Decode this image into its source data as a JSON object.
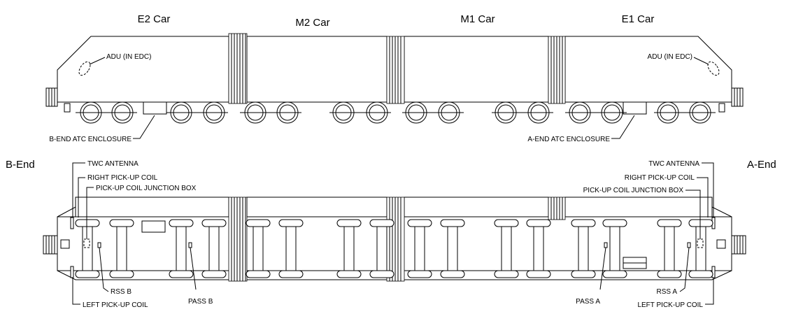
{
  "side_view": {
    "cars": [
      {
        "id": "e2",
        "label": "E2 Car"
      },
      {
        "id": "m2",
        "label": "M2 Car"
      },
      {
        "id": "m1",
        "label": "M1 Car"
      },
      {
        "id": "e1",
        "label": "E1 Car"
      }
    ],
    "callouts": {
      "adu_left": "ADU (IN EDC)",
      "adu_right": "ADU (IN EDC)",
      "b_end_atc": "B-END ATC ENCLOSURE",
      "a_end_atc": "A-END ATC ENCLOSURE"
    }
  },
  "plan_view": {
    "b_end_label": "B-End",
    "a_end_label": "A-End",
    "left_callouts": {
      "twc_antenna": "TWC ANTENNA",
      "right_pickup_coil": "RIGHT PICK-UP COIL",
      "junction_box": "PICK-UP COIL JUNCTION BOX",
      "rss": "RSS B",
      "pass": "PASS B",
      "left_pickup_coil": "LEFT PICK-UP COIL"
    },
    "right_callouts": {
      "twc_antenna": "TWC ANTENNA",
      "right_pickup_coil": "RIGHT PICK-UP COIL",
      "junction_box": "PICK-UP COIL JUNCTION BOX",
      "rss": "RSS A",
      "pass": "PASS A",
      "left_pickup_coil": "LEFT PICK-UP COIL"
    }
  }
}
